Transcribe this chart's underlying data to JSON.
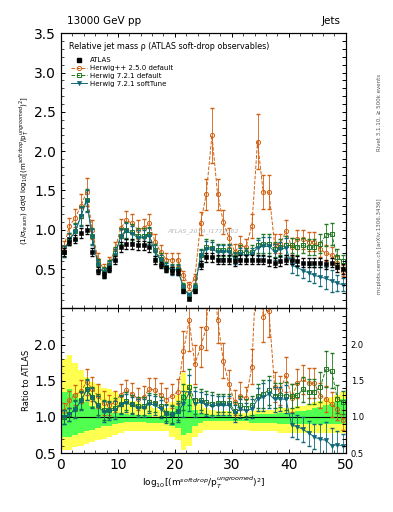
{
  "title_top": "13000 GeV pp",
  "title_right": "Jets",
  "plot_title": "Relative jet mass ρ (ATLAS soft-drop observables)",
  "ylabel_main": "(1/σ$_{resum}$) dσ/d log$_{10}$[(m$^{soft drop}$/p$_T^{ungroomed})^2$]",
  "ylabel_ratio": "Ratio to ATLAS",
  "right_label": "Rivet 3.1.10, ≥ 500k events",
  "right_label2": "mcplots.cern.ch [arXiv:1306.3436]",
  "watermark": "ATLAS_2019_I1772362",
  "xlim": [
    0,
    50
  ],
  "ylim_main": [
    0,
    3.5
  ],
  "ylim_ratio": [
    0.5,
    2.5
  ],
  "xticks": [
    0,
    10,
    20,
    30,
    40,
    50
  ],
  "yticks_main": [
    0.5,
    1.0,
    1.5,
    2.0,
    2.5,
    3.0,
    3.5
  ],
  "yticks_ratio": [
    0.5,
    1.0,
    1.5,
    2.0
  ],
  "x": [
    0.5,
    1.5,
    2.5,
    3.5,
    4.5,
    5.5,
    6.5,
    7.5,
    8.5,
    9.5,
    10.5,
    11.5,
    12.5,
    13.5,
    14.5,
    15.5,
    16.5,
    17.5,
    18.5,
    19.5,
    20.5,
    21.5,
    22.5,
    23.5,
    24.5,
    25.5,
    26.5,
    27.5,
    28.5,
    29.5,
    30.5,
    31.5,
    32.5,
    33.5,
    34.5,
    35.5,
    36.5,
    37.5,
    38.5,
    39.5,
    40.5,
    41.5,
    42.5,
    43.5,
    44.5,
    45.5,
    46.5,
    47.5,
    48.5,
    49.5
  ],
  "atlas_y": [
    0.72,
    0.85,
    0.88,
    0.96,
    1.0,
    0.72,
    0.48,
    0.42,
    0.5,
    0.62,
    0.78,
    0.82,
    0.82,
    0.8,
    0.8,
    0.78,
    0.62,
    0.55,
    0.5,
    0.48,
    0.46,
    0.22,
    0.12,
    0.22,
    0.55,
    0.65,
    0.65,
    0.62,
    0.62,
    0.62,
    0.6,
    0.62,
    0.62,
    0.62,
    0.62,
    0.62,
    0.6,
    0.58,
    0.6,
    0.62,
    0.62,
    0.6,
    0.58,
    0.58,
    0.58,
    0.58,
    0.56,
    0.58,
    0.52,
    0.5
  ],
  "atlas_yerr": [
    0.05,
    0.05,
    0.05,
    0.06,
    0.06,
    0.05,
    0.04,
    0.04,
    0.04,
    0.05,
    0.06,
    0.06,
    0.06,
    0.06,
    0.06,
    0.06,
    0.05,
    0.04,
    0.04,
    0.04,
    0.04,
    0.03,
    0.02,
    0.03,
    0.05,
    0.06,
    0.06,
    0.06,
    0.06,
    0.06,
    0.06,
    0.06,
    0.06,
    0.06,
    0.06,
    0.06,
    0.06,
    0.06,
    0.06,
    0.06,
    0.06,
    0.06,
    0.06,
    0.06,
    0.06,
    0.06,
    0.06,
    0.06,
    0.06,
    0.06
  ],
  "hpp_y": [
    0.78,
    1.05,
    1.15,
    1.3,
    1.48,
    1.0,
    0.62,
    0.5,
    0.58,
    0.75,
    1.02,
    1.12,
    1.08,
    1.0,
    1.02,
    1.08,
    0.85,
    0.72,
    0.62,
    0.62,
    0.62,
    0.42,
    0.28,
    0.38,
    1.08,
    1.45,
    2.2,
    1.45,
    1.1,
    0.9,
    0.72,
    0.8,
    0.78,
    1.05,
    2.12,
    1.48,
    1.48,
    0.82,
    0.82,
    0.98,
    0.78,
    0.88,
    0.88,
    0.85,
    0.85,
    0.75,
    0.7,
    0.68,
    0.58,
    0.48
  ],
  "hpp_yerr": [
    0.08,
    0.1,
    0.12,
    0.15,
    0.18,
    0.12,
    0.08,
    0.07,
    0.07,
    0.09,
    0.12,
    0.12,
    0.12,
    0.12,
    0.12,
    0.12,
    0.1,
    0.09,
    0.08,
    0.08,
    0.08,
    0.06,
    0.05,
    0.06,
    0.15,
    0.2,
    0.35,
    0.2,
    0.15,
    0.12,
    0.1,
    0.12,
    0.1,
    0.15,
    0.35,
    0.22,
    0.22,
    0.12,
    0.12,
    0.15,
    0.12,
    0.12,
    0.12,
    0.12,
    0.12,
    0.1,
    0.1,
    0.1,
    0.08,
    0.07
  ],
  "h721_y": [
    0.72,
    0.88,
    0.98,
    1.18,
    1.38,
    0.92,
    0.56,
    0.46,
    0.55,
    0.7,
    0.92,
    1.0,
    0.97,
    0.92,
    0.92,
    0.94,
    0.74,
    0.63,
    0.53,
    0.5,
    0.5,
    0.28,
    0.17,
    0.27,
    0.68,
    0.78,
    0.77,
    0.74,
    0.74,
    0.74,
    0.65,
    0.72,
    0.7,
    0.72,
    0.8,
    0.82,
    0.82,
    0.75,
    0.78,
    0.8,
    0.8,
    0.78,
    0.8,
    0.78,
    0.78,
    0.82,
    0.93,
    0.95,
    0.65,
    0.6
  ],
  "h721_yerr": [
    0.07,
    0.08,
    0.1,
    0.12,
    0.14,
    0.1,
    0.07,
    0.06,
    0.06,
    0.08,
    0.1,
    0.1,
    0.1,
    0.1,
    0.1,
    0.1,
    0.08,
    0.07,
    0.06,
    0.06,
    0.06,
    0.04,
    0.03,
    0.04,
    0.08,
    0.1,
    0.1,
    0.08,
    0.08,
    0.08,
    0.07,
    0.08,
    0.07,
    0.08,
    0.1,
    0.12,
    0.12,
    0.1,
    0.1,
    0.12,
    0.1,
    0.1,
    0.1,
    0.1,
    0.1,
    0.12,
    0.14,
    0.14,
    0.1,
    0.08
  ],
  "hst_y": [
    0.72,
    0.88,
    0.97,
    1.17,
    1.37,
    0.91,
    0.55,
    0.45,
    0.54,
    0.68,
    0.91,
    0.98,
    0.95,
    0.9,
    0.9,
    0.92,
    0.72,
    0.61,
    0.52,
    0.49,
    0.49,
    0.26,
    0.16,
    0.26,
    0.66,
    0.76,
    0.75,
    0.72,
    0.72,
    0.72,
    0.63,
    0.69,
    0.67,
    0.69,
    0.77,
    0.79,
    0.79,
    0.72,
    0.75,
    0.77,
    0.55,
    0.52,
    0.48,
    0.45,
    0.42,
    0.4,
    0.38,
    0.35,
    0.32,
    0.3
  ],
  "hst_yerr": [
    0.07,
    0.08,
    0.1,
    0.12,
    0.14,
    0.1,
    0.07,
    0.06,
    0.06,
    0.08,
    0.1,
    0.1,
    0.1,
    0.1,
    0.1,
    0.1,
    0.08,
    0.07,
    0.06,
    0.06,
    0.06,
    0.04,
    0.03,
    0.04,
    0.08,
    0.1,
    0.1,
    0.08,
    0.08,
    0.08,
    0.07,
    0.08,
    0.07,
    0.08,
    0.1,
    0.12,
    0.12,
    0.1,
    0.1,
    0.12,
    0.1,
    0.1,
    0.1,
    0.1,
    0.1,
    0.12,
    0.14,
    0.14,
    0.1,
    0.08
  ],
  "yellow_band_lo": [
    0.55,
    0.55,
    0.58,
    0.6,
    0.62,
    0.65,
    0.68,
    0.7,
    0.72,
    0.75,
    0.78,
    0.8,
    0.8,
    0.8,
    0.8,
    0.8,
    0.8,
    0.8,
    0.8,
    0.72,
    0.68,
    0.55,
    0.6,
    0.72,
    0.78,
    0.82,
    0.82,
    0.82,
    0.82,
    0.82,
    0.82,
    0.82,
    0.82,
    0.8,
    0.8,
    0.8,
    0.8,
    0.8,
    0.78,
    0.78,
    0.78,
    0.78,
    0.78,
    0.78,
    0.78,
    0.78,
    0.78,
    0.78,
    0.78,
    0.78
  ],
  "yellow_band_hi": [
    1.8,
    1.85,
    1.75,
    1.65,
    1.55,
    1.48,
    1.45,
    1.4,
    1.38,
    1.35,
    1.3,
    1.25,
    1.22,
    1.2,
    1.18,
    1.15,
    1.12,
    1.1,
    1.12,
    1.2,
    1.3,
    1.6,
    1.45,
    1.25,
    1.18,
    1.12,
    1.1,
    1.08,
    1.08,
    1.08,
    1.05,
    1.05,
    1.05,
    1.08,
    1.1,
    1.1,
    1.1,
    1.1,
    1.12,
    1.12,
    1.12,
    1.15,
    1.15,
    1.18,
    1.2,
    1.22,
    1.25,
    1.28,
    1.3,
    1.35
  ],
  "green_band_lo": [
    0.72,
    0.72,
    0.75,
    0.78,
    0.8,
    0.82,
    0.85,
    0.87,
    0.88,
    0.9,
    0.92,
    0.93,
    0.93,
    0.93,
    0.93,
    0.92,
    0.92,
    0.92,
    0.92,
    0.88,
    0.85,
    0.75,
    0.78,
    0.88,
    0.92,
    0.94,
    0.94,
    0.94,
    0.94,
    0.94,
    0.94,
    0.94,
    0.94,
    0.92,
    0.92,
    0.92,
    0.92,
    0.92,
    0.9,
    0.9,
    0.9,
    0.9,
    0.9,
    0.9,
    0.9,
    0.9,
    0.9,
    0.9,
    0.9,
    0.9
  ],
  "green_band_hi": [
    1.35,
    1.38,
    1.32,
    1.25,
    1.2,
    1.15,
    1.12,
    1.1,
    1.08,
    1.06,
    1.05,
    1.04,
    1.03,
    1.02,
    1.02,
    1.02,
    1.0,
    1.0,
    1.02,
    1.08,
    1.15,
    1.32,
    1.25,
    1.1,
    1.06,
    1.04,
    1.03,
    1.02,
    1.02,
    1.02,
    1.0,
    1.0,
    1.0,
    1.02,
    1.04,
    1.04,
    1.04,
    1.04,
    1.06,
    1.06,
    1.06,
    1.08,
    1.08,
    1.1,
    1.12,
    1.14,
    1.16,
    1.18,
    1.2,
    1.25
  ],
  "color_atlas": "#000000",
  "color_hpp": "#D06010",
  "color_h721": "#207820",
  "color_hst": "#106878",
  "color_yellow": "#FFFF50",
  "color_green": "#50FF50",
  "legend_labels": [
    "ATLAS",
    "Herwig++ 2.5.0 default",
    "Herwig 7.2.1 default",
    "Herwig 7.2.1 softTune"
  ]
}
